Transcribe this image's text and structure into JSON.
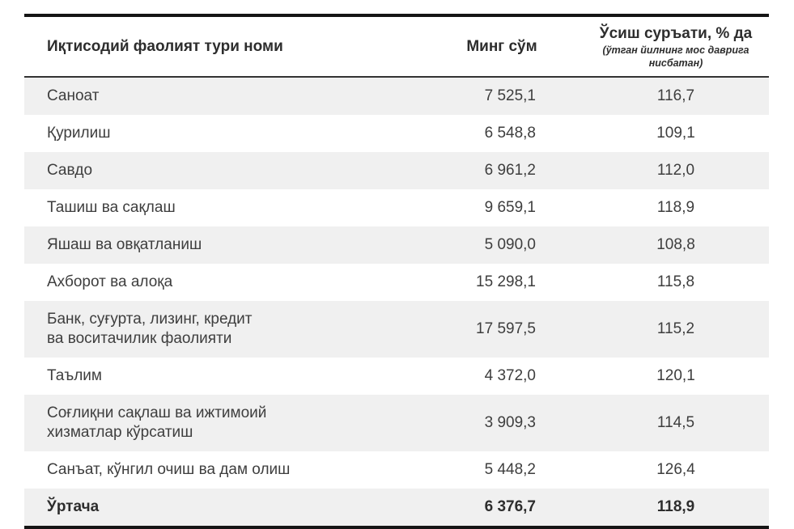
{
  "colors": {
    "stripe": "#f0f0f0",
    "border_heavy": "#151515",
    "border_medium": "#333333",
    "text": "#3e3e3e",
    "text_dark": "#2d2d2d"
  },
  "table": {
    "columns": [
      {
        "label": "Иқтисодий фаолият тури номи"
      },
      {
        "label": "Минг сўм"
      },
      {
        "label": "Ўсиш суръати, % да",
        "sublabel": "(ўтган йилнинг мос даврига нисбатан)"
      }
    ],
    "rows": [
      {
        "name": "Саноат",
        "amount": "7 525,1",
        "growth": "116,7"
      },
      {
        "name": "Қурилиш",
        "amount": "6 548,8",
        "growth": "109,1"
      },
      {
        "name": "Савдо",
        "amount": "6 961,2",
        "growth": "112,0"
      },
      {
        "name": "Ташиш ва сақлаш",
        "amount": "9 659,1",
        "growth": "118,9"
      },
      {
        "name": "Яшаш ва овқатланиш",
        "amount": "5 090,0",
        "growth": "108,8"
      },
      {
        "name": "Ахборот ва алоқа",
        "amount": "15 298,1",
        "growth": "115,8"
      },
      {
        "name": "Банк, суғурта, лизинг, кредит\nва воситачилик фаолияти",
        "amount": "17 597,5",
        "growth": "115,2"
      },
      {
        "name": "Таълим",
        "amount": "4 372,0",
        "growth": "120,1"
      },
      {
        "name": "Соғлиқни сақлаш ва ижтимоий\nхизматлар кўрсатиш",
        "amount": "3 909,3",
        "growth": "114,5"
      },
      {
        "name": "Санъат, кўнгил очиш ва дам олиш",
        "amount": "5 448,2",
        "growth": "126,4"
      }
    ],
    "footer": {
      "name": "Ўртача",
      "amount": "6 376,7",
      "growth": "118,9"
    }
  }
}
